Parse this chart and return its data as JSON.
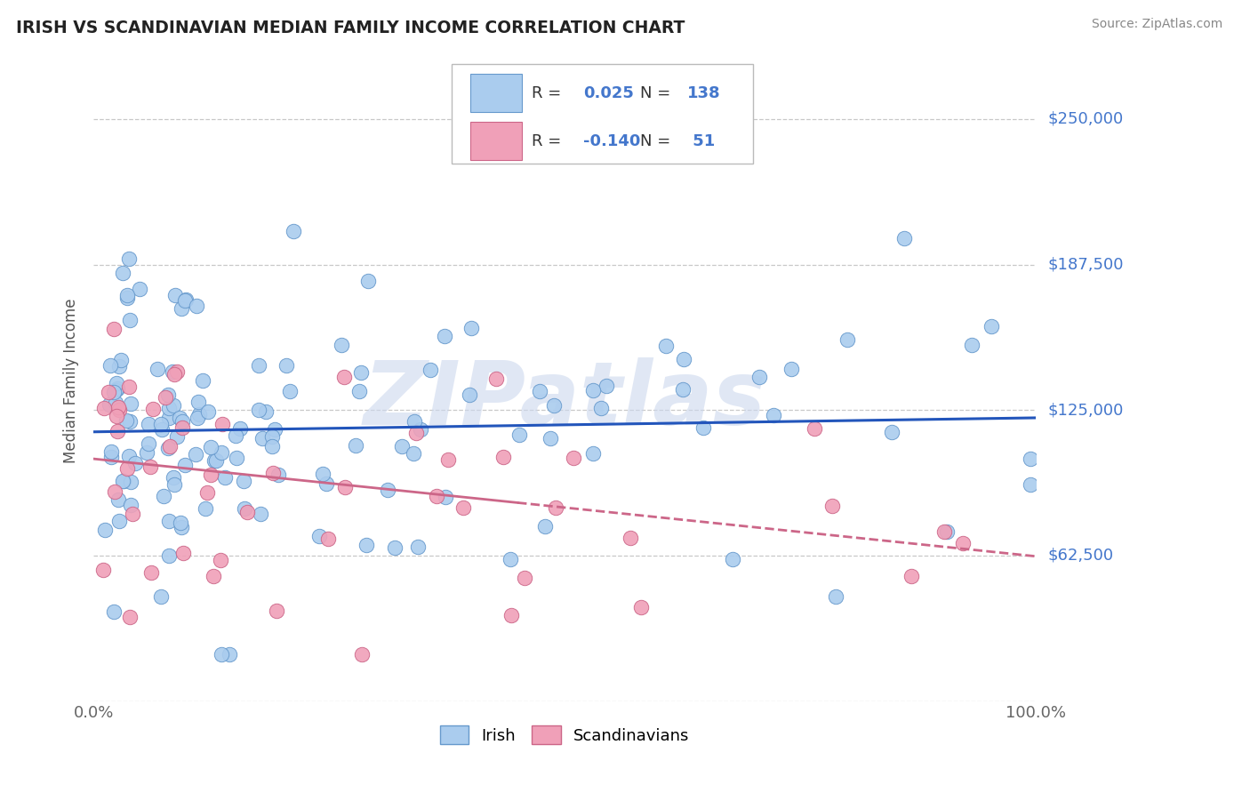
{
  "title": "IRISH VS SCANDINAVIAN MEDIAN FAMILY INCOME CORRELATION CHART",
  "source": "Source: ZipAtlas.com",
  "ylabel": "Median Family Income",
  "xlim": [
    0,
    1
  ],
  "ylim": [
    0,
    275000
  ],
  "yticks": [
    0,
    62500,
    125000,
    187500,
    250000
  ],
  "ytick_labels": [
    "",
    "$62,500",
    "$125,000",
    "$187,500",
    "$250,000"
  ],
  "xtick_labels": [
    "0.0%",
    "100.0%"
  ],
  "bg_color": "#ffffff",
  "grid_color": "#c8c8c8",
  "irish_color": "#aaccee",
  "irish_edge_color": "#6699cc",
  "scand_color": "#f0a0b8",
  "scand_edge_color": "#cc6688",
  "irish_line_color": "#2255bb",
  "scand_line_color": "#cc6688",
  "ytick_color": "#4477cc",
  "irish_R": "0.025",
  "irish_N": "138",
  "scand_R": "-0.140",
  "scand_N": "51",
  "watermark": "ZIPatlas",
  "watermark_color": "#ccd8ee"
}
